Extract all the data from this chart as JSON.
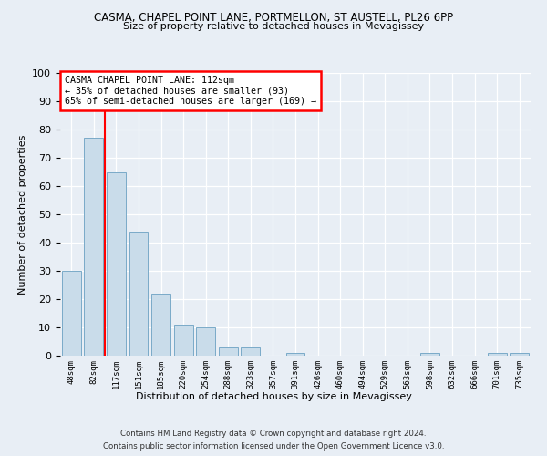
{
  "title1": "CASMA, CHAPEL POINT LANE, PORTMELLON, ST AUSTELL, PL26 6PP",
  "title2": "Size of property relative to detached houses in Mevagissey",
  "xlabel": "Distribution of detached houses by size in Mevagissey",
  "ylabel": "Number of detached properties",
  "categories": [
    "48sqm",
    "82sqm",
    "117sqm",
    "151sqm",
    "185sqm",
    "220sqm",
    "254sqm",
    "288sqm",
    "323sqm",
    "357sqm",
    "391sqm",
    "426sqm",
    "460sqm",
    "494sqm",
    "529sqm",
    "563sqm",
    "598sqm",
    "632sqm",
    "666sqm",
    "701sqm",
    "735sqm"
  ],
  "values": [
    30,
    77,
    65,
    44,
    22,
    11,
    10,
    3,
    3,
    0,
    1,
    0,
    0,
    0,
    0,
    0,
    1,
    0,
    0,
    1,
    1
  ],
  "bar_color": "#c9dcea",
  "bar_edge_color": "#7aaac8",
  "annotation_label": "CASMA CHAPEL POINT LANE: 112sqm",
  "annotation_line2": "← 35% of detached houses are smaller (93)",
  "annotation_line3": "65% of semi-detached houses are larger (169) →",
  "ylim": [
    0,
    100
  ],
  "yticks": [
    0,
    10,
    20,
    30,
    40,
    50,
    60,
    70,
    80,
    90,
    100
  ],
  "footnote1": "Contains HM Land Registry data © Crown copyright and database right 2024.",
  "footnote2": "Contains public sector information licensed under the Open Government Licence v3.0.",
  "background_color": "#e8eef5",
  "bar_width": 0.85,
  "ref_line_x": 1.5
}
